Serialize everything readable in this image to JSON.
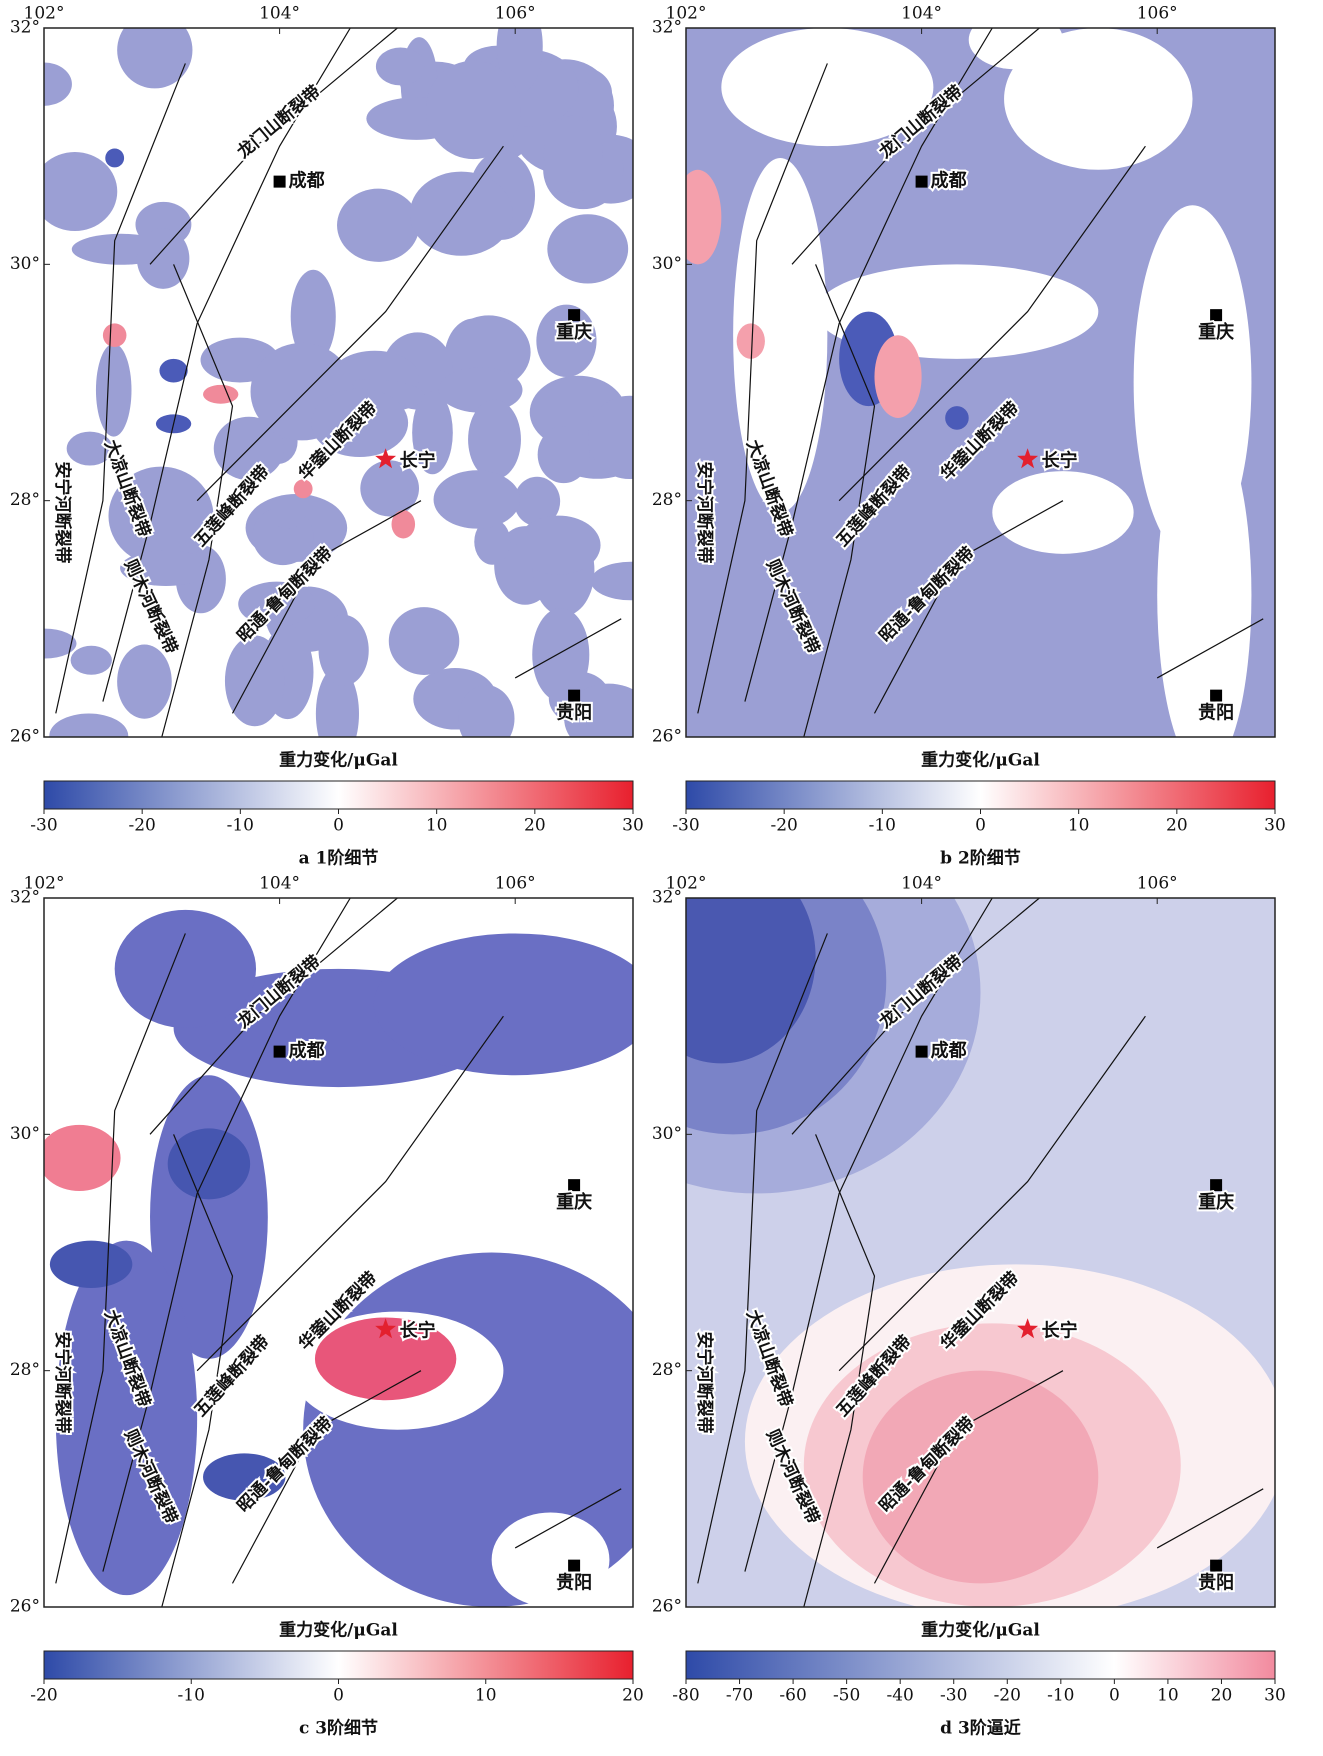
{
  "panels": [
    {
      "caption": "a 1阶细节",
      "xlim": [
        102,
        107
      ],
      "ylim": [
        26,
        32
      ],
      "xticks": [
        {
          "value": 102,
          "label": "102°"
        },
        {
          "value": 104,
          "label": "104°"
        },
        {
          "value": 106,
          "label": "106°"
        }
      ],
      "yticks": [
        {
          "value": 26,
          "label": "26°"
        },
        {
          "value": 28,
          "label": "28°"
        },
        {
          "value": 30,
          "label": "30°"
        },
        {
          "value": 32,
          "label": "32°"
        }
      ],
      "colorbar": {
        "title": "重力变化/μGal",
        "lim": [
          -30,
          30
        ],
        "ticks": [
          -30,
          -20,
          -10,
          0,
          10,
          20,
          30
        ],
        "colors": [
          "#2e4aa8",
          "#ffffff",
          "#e8202e"
        ]
      },
      "cities": [
        {
          "name": "成都",
          "lon": 104,
          "lat": 30.7
        },
        {
          "name": "重庆",
          "lon": 106.5,
          "lat": 29.57
        },
        {
          "name": "贵阳",
          "lon": 106.5,
          "lat": 26.35
        }
      ],
      "star": {
        "name": "长宁",
        "lon": 104.9,
        "lat": 28.35
      },
      "faults": [
        "龙门山断裂带",
        "安宁河断裂带",
        "大凉山断裂带",
        "则木河断裂带",
        "五莲峰断裂带",
        "华蓥山断裂带",
        "昭通-鲁甸断裂带"
      ]
    },
    {
      "caption": "b 2阶细节",
      "xlim": [
        102,
        107
      ],
      "ylim": [
        26,
        32
      ],
      "xticks": [
        {
          "value": 102,
          "label": "102°"
        },
        {
          "value": 104,
          "label": "104°"
        },
        {
          "value": 106,
          "label": "106°"
        }
      ],
      "yticks": [
        {
          "value": 26,
          "label": "26°"
        },
        {
          "value": 28,
          "label": "28°"
        },
        {
          "value": 30,
          "label": "30°"
        },
        {
          "value": 32,
          "label": "32°"
        }
      ],
      "colorbar": {
        "title": "重力变化/μGal",
        "lim": [
          -30,
          30
        ],
        "ticks": [
          -30,
          -20,
          -10,
          0,
          10,
          20,
          30
        ],
        "colors": [
          "#2e4aa8",
          "#ffffff",
          "#e8202e"
        ]
      },
      "cities": [
        {
          "name": "成都",
          "lon": 104,
          "lat": 30.7
        },
        {
          "name": "重庆",
          "lon": 106.5,
          "lat": 29.57
        },
        {
          "name": "贵阳",
          "lon": 106.5,
          "lat": 26.35
        }
      ],
      "star": {
        "name": "长宁",
        "lon": 104.9,
        "lat": 28.35
      },
      "faults": [
        "龙门山断裂带",
        "安宁河断裂带",
        "大凉山断裂带",
        "则木河断裂带",
        "五莲峰断裂带",
        "华蓥山断裂带",
        "昭通-鲁甸断裂带"
      ]
    },
    {
      "caption": "c 3阶细节",
      "xlim": [
        102,
        107
      ],
      "ylim": [
        26,
        32
      ],
      "xticks": [
        {
          "value": 102,
          "label": "102°"
        },
        {
          "value": 104,
          "label": "104°"
        },
        {
          "value": 106,
          "label": "106°"
        }
      ],
      "yticks": [
        {
          "value": 26,
          "label": "26°"
        },
        {
          "value": 28,
          "label": "28°"
        },
        {
          "value": 30,
          "label": "30°"
        },
        {
          "value": 32,
          "label": "32°"
        }
      ],
      "colorbar": {
        "title": "重力变化/μGal",
        "lim": [
          -20,
          20
        ],
        "ticks": [
          -20,
          -10,
          0,
          10,
          20
        ],
        "colors": [
          "#2e4aa8",
          "#ffffff",
          "#e8202e"
        ]
      },
      "cities": [
        {
          "name": "成都",
          "lon": 104,
          "lat": 30.7
        },
        {
          "name": "重庆",
          "lon": 106.5,
          "lat": 29.57
        },
        {
          "name": "贵阳",
          "lon": 106.5,
          "lat": 26.35
        }
      ],
      "star": {
        "name": "长宁",
        "lon": 104.9,
        "lat": 28.35
      },
      "faults": [
        "龙门山断裂带",
        "安宁河断裂带",
        "大凉山断裂带",
        "则木河断裂带",
        "五莲峰断裂带",
        "华蓥山断裂带",
        "昭通-鲁甸断裂带"
      ]
    },
    {
      "caption": "d 3阶逼近",
      "xlim": [
        102,
        107
      ],
      "ylim": [
        26,
        32
      ],
      "xticks": [
        {
          "value": 102,
          "label": "102°"
        },
        {
          "value": 104,
          "label": "104°"
        },
        {
          "value": 106,
          "label": "106°"
        }
      ],
      "yticks": [
        {
          "value": 26,
          "label": "26°"
        },
        {
          "value": 28,
          "label": "28°"
        },
        {
          "value": 30,
          "label": "30°"
        },
        {
          "value": 32,
          "label": "32°"
        }
      ],
      "colorbar": {
        "title": "重力变化/μGal",
        "lim": [
          -80,
          30
        ],
        "ticks": [
          -80,
          -70,
          -60,
          -50,
          -40,
          -30,
          -20,
          -10,
          0,
          10,
          20,
          30
        ],
        "colors": [
          "#2e4aa8",
          "#ffffff",
          "#f28a9e"
        ]
      },
      "cities": [
        {
          "name": "成都",
          "lon": 104,
          "lat": 30.7
        },
        {
          "name": "重庆",
          "lon": 106.5,
          "lat": 29.57
        },
        {
          "name": "贵阳",
          "lon": 106.5,
          "lat": 26.35
        }
      ],
      "star": {
        "name": "长宁",
        "lon": 104.9,
        "lat": 28.35
      },
      "faults": [
        "龙门山断裂带",
        "安宁河断裂带",
        "大凉山断裂带",
        "则木河断裂带",
        "五莲峰断裂带",
        "华蓥山断裂带",
        "昭通-鲁甸断裂带"
      ]
    }
  ]
}
